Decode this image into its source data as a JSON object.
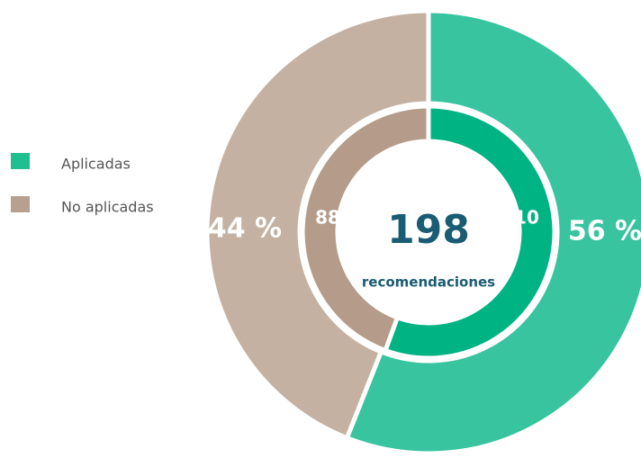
{
  "chart_data": {
    "type": "donut",
    "categories": [
      "Aplicadas",
      "No aplicadas"
    ],
    "legend_colors": [
      "#1fbf8f",
      "#b8a090"
    ],
    "rings": [
      {
        "values": [
          56,
          44
        ],
        "value_labels": [
          "56 %",
          "44 %"
        ],
        "colors": [
          "#38c49f",
          "#c4b1a2"
        ]
      },
      {
        "values": [
          110,
          88
        ],
        "colors": [
          "#00b383",
          "#b59c8a"
        ]
      }
    ],
    "center_value": 198,
    "center_label": "recomendaciones"
  }
}
